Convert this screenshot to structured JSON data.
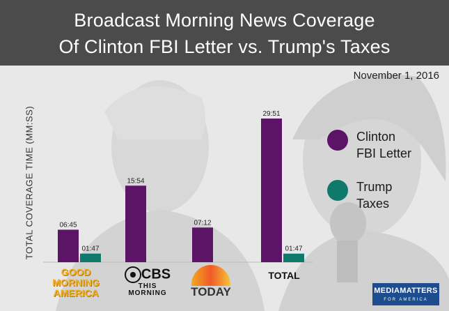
{
  "header": {
    "title_line1": "Broadcast Morning News Coverage",
    "title_line2": "Of Clinton FBI Letter vs. Trump's Taxes",
    "date": "November 1, 2016"
  },
  "colors": {
    "clinton": "#5b1466",
    "trump": "#0f7a6b",
    "title_bar": "#4b4b4b"
  },
  "chart_data": {
    "type": "bar",
    "ylabel": "TOTAL COVERAGE TIME (MM:SS)",
    "unit": "minutes",
    "ylim": [
      0,
      32
    ],
    "grid": false,
    "legend_position": "right",
    "categories": [
      "Good Morning America",
      "CBS This Morning",
      "Today",
      "TOTAL"
    ],
    "series": [
      {
        "name": "Clinton FBI Letter",
        "values": [
          6.75,
          15.9,
          7.2,
          29.85
        ],
        "labels": [
          "06:45",
          "15:54",
          "07:12",
          "29:51"
        ],
        "color": "#5b1466"
      },
      {
        "name": "Trump Taxes",
        "values": [
          1.7833,
          0,
          0,
          1.7833
        ],
        "labels": [
          "01:47",
          "",
          "",
          "01:47"
        ],
        "color": "#0f7a6b"
      }
    ]
  },
  "legend": {
    "clinton_line1": "Clinton",
    "clinton_line2": "FBI Letter",
    "trump_line1": "Trump",
    "trump_line2": "Taxes"
  },
  "logos": {
    "gma_line1": "GOOD",
    "gma_line2": "MORNING",
    "gma_line3": "AMERICA",
    "cbs_word": "CBS",
    "cbs_line2": "THIS",
    "cbs_line3": "MORNING",
    "today_word": "TODAY",
    "total_word": "TOTAL",
    "mm_word": "MEDIAMATTERS",
    "mm_sub": "FOR AMERICA"
  }
}
